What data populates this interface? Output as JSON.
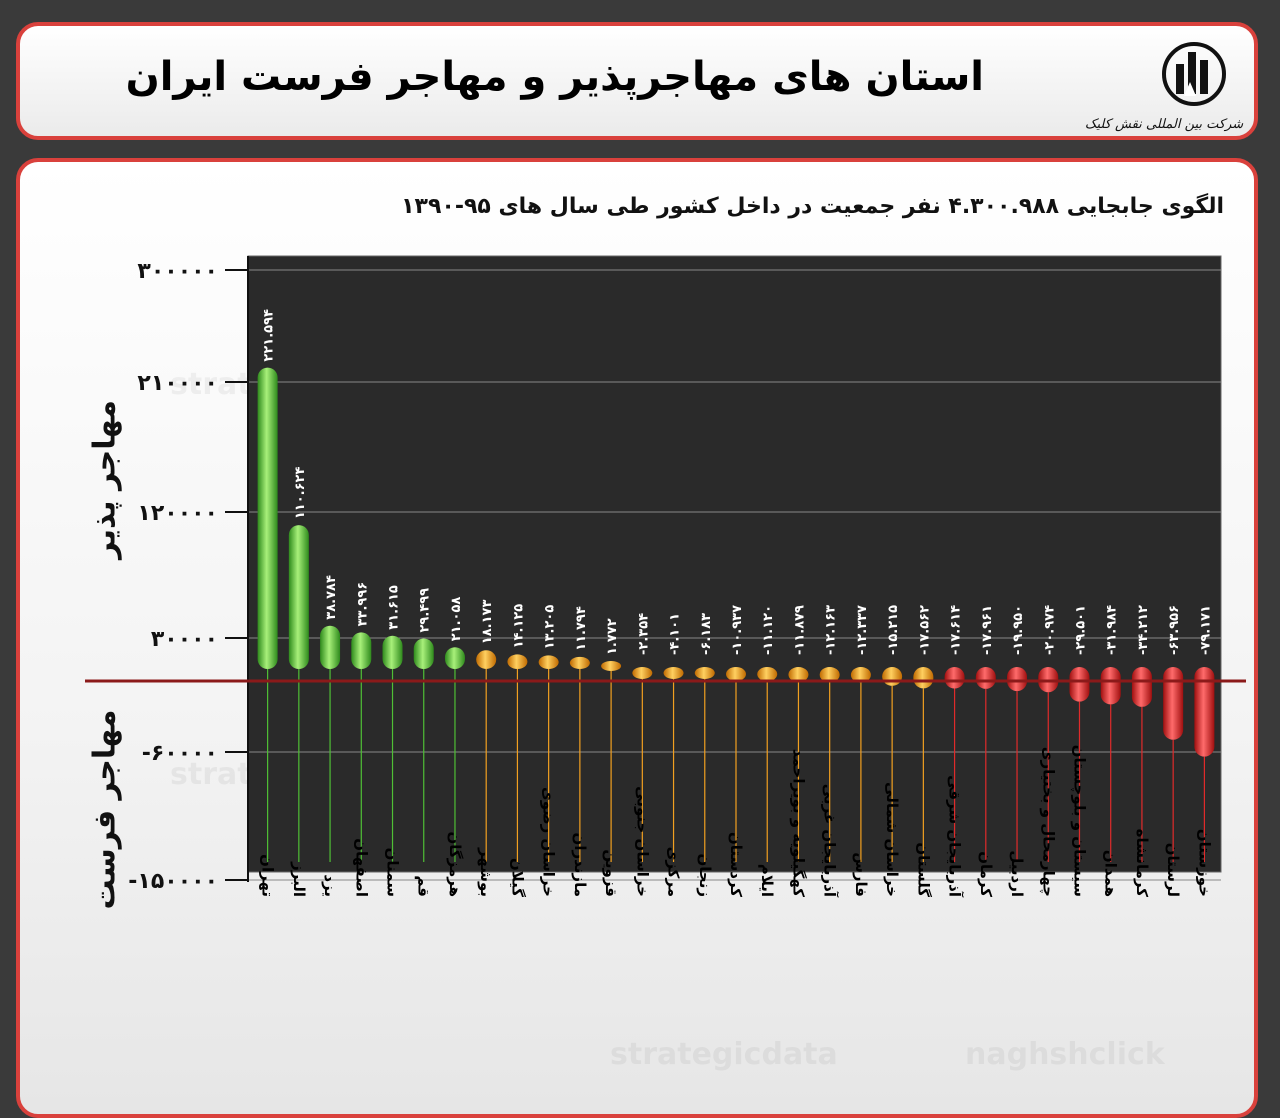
{
  "header": {
    "title": "استان های مهاجرپذیر و مهاجر فرست ایران",
    "logo_text": "شرکت بین المللی نقش کلیک"
  },
  "chart": {
    "subtitle": "الگوی جابجایی ۴.۳۰۰.۹۸۸ نفر جمعیت در داخل کشور طی سال های ۹۵-۱۳۹۰",
    "side_label_top": "مهاجر پذیر",
    "side_label_bottom": "مهاجر فرست"
  },
  "watermarks": [
    "strategicdata",
    "naghshclick"
  ],
  "colors": {
    "border": "#d9413c",
    "green": "#5cc83a",
    "orange": "#f2a020",
    "red": "#e02a2a",
    "axis_line": "#8b1a1a"
  },
  "chart_data": {
    "type": "bar",
    "ytick_labels": [
      "۳۰۰۰۰۰",
      "۲۱۰۰۰۰",
      "۱۲۰۰۰۰",
      "۳۰۰۰۰",
      "-۶۰۰۰۰",
      "-۱۵۰۰۰۰"
    ],
    "ylim": [
      -150000,
      300000
    ],
    "categories": [
      "تهران",
      "البرز",
      "یزد",
      "اصفهان",
      "سمنان",
      "قم",
      "هرمزگان",
      "بوشهر",
      "گیلان",
      "خراسان رضوی",
      "مازندران",
      "قزوین",
      "خراسان جنوبی",
      "مرکزی",
      "زنجان",
      "کردستان",
      "ایلام",
      "کهگیلویه و بویراحمد",
      "آذربایجان غربی",
      "فارس",
      "خراسان شمالی",
      "گلستان",
      "آذربایجان شرقی",
      "کرمان",
      "اردبیل",
      "چهارمحال و بختیاری",
      "سیستان و بلوچستان",
      "همدان",
      "کرمانشاه",
      "لرستان",
      "خوزستان"
    ],
    "values": [
      221594,
      110624,
      38784,
      33996,
      31615,
      29499,
      21058,
      18173,
      14125,
      13205,
      11794,
      1772,
      -2354,
      -4101,
      -6183,
      -10937,
      -11120,
      -11879,
      -12163,
      -12337,
      -15215,
      -17562,
      -17614,
      -17961,
      -19950,
      -20974,
      -29501,
      -31984,
      -34212,
      -63956,
      -79171
    ],
    "value_labels": [
      "۲۲۱.۵۹۴",
      "۱۱۰.۶۲۴",
      "۳۸.۷۸۴",
      "۳۳.۹۹۶",
      "۳۱.۶۱۵",
      "۲۹.۴۹۹",
      "۲۱.۰۵۸",
      "۱۸.۱۷۳",
      "۱۴.۱۲۵",
      "۱۳.۲۰۵",
      "۱۱.۷۹۴",
      "۱.۷۷۲",
      "-۲.۳۵۴",
      "-۴.۱۰۱",
      "-۶.۱۸۳",
      "-۱۰.۹۳۷",
      "-۱۱.۱۲۰",
      "-۱۱.۸۷۹",
      "-۱۲.۱۶۳",
      "-۱۲.۳۳۷",
      "-۱۵.۲۱۵",
      "-۱۷.۵۶۲",
      "-۱۷.۶۱۴",
      "-۱۷.۹۶۱",
      "-۱۹.۹۵۰",
      "-۲۰.۹۷۴",
      "-۲۹.۵۰۱",
      "-۳۱.۹۸۴",
      "-۳۴.۲۱۲",
      "-۶۳.۹۵۶",
      "-۷۹.۱۷۱"
    ],
    "bar_colors": [
      "green",
      "green",
      "green",
      "green",
      "green",
      "green",
      "green",
      "orange",
      "orange",
      "orange",
      "orange",
      "orange",
      "orange",
      "orange",
      "orange",
      "orange",
      "orange",
      "orange",
      "orange",
      "orange",
      "orange",
      "orange",
      "red",
      "red",
      "red",
      "red",
      "red",
      "red",
      "red",
      "red",
      "red"
    ],
    "grid": true
  }
}
